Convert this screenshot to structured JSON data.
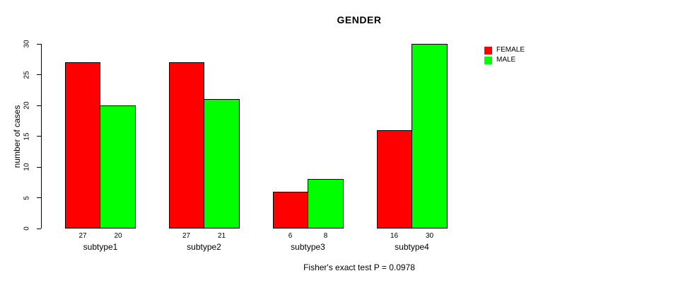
{
  "title": "GENDER",
  "chart_data": {
    "type": "bar",
    "title": "GENDER",
    "categories": [
      "subtype1",
      "subtype2",
      "subtype3",
      "subtype4"
    ],
    "series": [
      {
        "name": "FEMALE",
        "color": "#ff0000",
        "values": [
          27,
          27,
          6,
          16
        ]
      },
      {
        "name": "MALE",
        "color": "#00ff00",
        "values": [
          20,
          21,
          8,
          30
        ]
      }
    ],
    "bar_value_labels": [
      [
        27,
        20
      ],
      [
        27,
        21
      ],
      [
        6,
        8
      ],
      [
        16,
        30
      ]
    ],
    "xlabel": "",
    "ylabel": "number of cases",
    "ylim": [
      0,
      30
    ],
    "yticks": [
      0,
      5,
      10,
      15,
      20,
      25,
      30
    ],
    "grid": false,
    "legend_position": "right-outside",
    "bar_border_color": "#000000",
    "caption": "Fisher's exact test P = 0.0978"
  }
}
